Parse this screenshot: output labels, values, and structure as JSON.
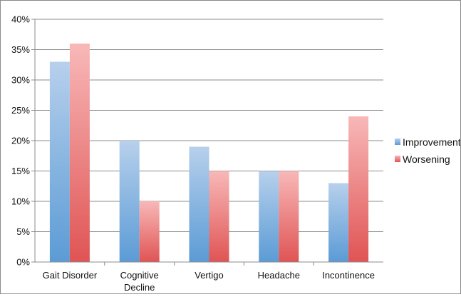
{
  "chart_data": {
    "type": "bar",
    "title": "",
    "xlabel": "",
    "ylabel": "",
    "categories": [
      [
        "Gait Disorder"
      ],
      [
        "Cognitive",
        "Decline"
      ],
      [
        "Vertigo"
      ],
      [
        "Headache"
      ],
      [
        "Incontinence"
      ]
    ],
    "series": [
      {
        "name": "Improvement",
        "values": [
          33,
          20,
          19,
          15,
          13
        ],
        "color": "#5b9bd5",
        "color_light": "#b7d0ec"
      },
      {
        "name": "Worsening",
        "values": [
          36,
          10,
          15,
          15,
          24
        ],
        "color": "#e05454",
        "color_light": "#f8b8b8"
      }
    ],
    "ylim": [
      0,
      40
    ],
    "yticks": [
      0,
      5,
      10,
      15,
      20,
      25,
      30,
      35,
      40
    ],
    "ytick_suffix": "%",
    "grid": true,
    "legend_position": "right"
  }
}
